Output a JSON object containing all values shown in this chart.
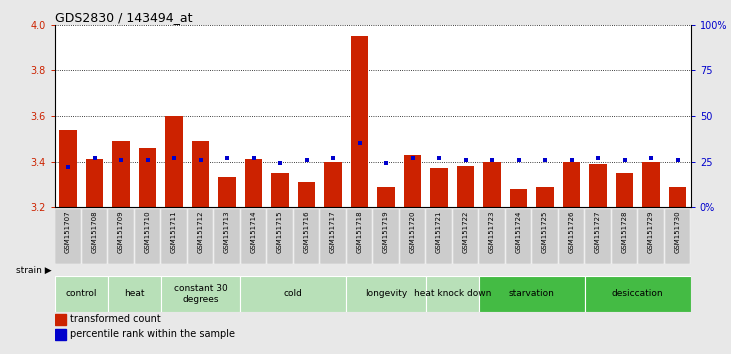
{
  "title": "GDS2830 / 143494_at",
  "samples": [
    "GSM151707",
    "GSM151708",
    "GSM151709",
    "GSM151710",
    "GSM151711",
    "GSM151712",
    "GSM151713",
    "GSM151714",
    "GSM151715",
    "GSM151716",
    "GSM151717",
    "GSM151718",
    "GSM151719",
    "GSM151720",
    "GSM151721",
    "GSM151722",
    "GSM151723",
    "GSM151724",
    "GSM151725",
    "GSM151726",
    "GSM151727",
    "GSM151728",
    "GSM151729",
    "GSM151730"
  ],
  "red_values": [
    3.54,
    3.41,
    3.49,
    3.46,
    3.6,
    3.49,
    3.33,
    3.41,
    3.35,
    3.31,
    3.4,
    3.95,
    3.29,
    3.43,
    3.37,
    3.38,
    3.4,
    3.28,
    3.29,
    3.4,
    3.39,
    3.35,
    3.4,
    3.29
  ],
  "blue_values": [
    22,
    27,
    26,
    26,
    27,
    26,
    27,
    27,
    24,
    26,
    27,
    35,
    24,
    27,
    27,
    26,
    26,
    26,
    26,
    26,
    27,
    26,
    27,
    26
  ],
  "groups": [
    {
      "label": "control",
      "start": 0,
      "end": 2,
      "color": "#b8e0b8"
    },
    {
      "label": "heat",
      "start": 2,
      "end": 4,
      "color": "#b8e0b8"
    },
    {
      "label": "constant 30\ndegrees",
      "start": 4,
      "end": 7,
      "color": "#b8e0b8"
    },
    {
      "label": "cold",
      "start": 7,
      "end": 11,
      "color": "#b8e0b8"
    },
    {
      "label": "longevity",
      "start": 11,
      "end": 14,
      "color": "#b8e0b8"
    },
    {
      "label": "heat knock down",
      "start": 14,
      "end": 16,
      "color": "#b8e0b8"
    },
    {
      "label": "starvation",
      "start": 16,
      "end": 20,
      "color": "#44bb44"
    },
    {
      "label": "desiccation",
      "start": 20,
      "end": 24,
      "color": "#44bb44"
    }
  ],
  "ylim_left": [
    3.2,
    4.0
  ],
  "ylim_right": [
    0,
    100
  ],
  "yticks_left": [
    3.2,
    3.4,
    3.6,
    3.8,
    4.0
  ],
  "yticks_right": [
    0,
    25,
    50,
    75,
    100
  ],
  "bar_color": "#cc2200",
  "dot_color": "#0000cc",
  "bg_color": "#e8e8e8",
  "plot_bg": "#ffffff",
  "left_tick_color": "#cc2200",
  "right_tick_color": "#0000cc",
  "title_fontsize": 9,
  "tick_fontsize": 7,
  "sample_fontsize": 5,
  "group_fontsize": 6.5
}
